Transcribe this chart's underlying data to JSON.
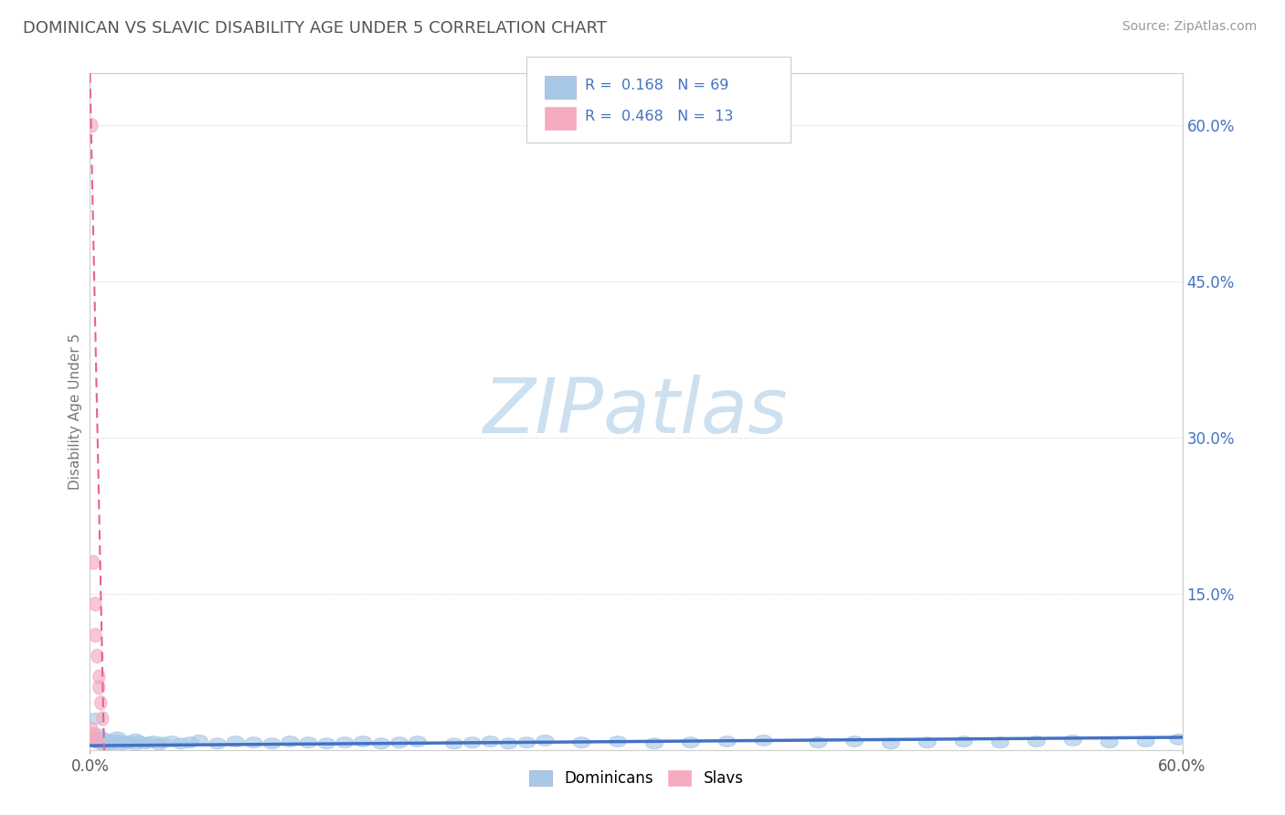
{
  "title": "DOMINICAN VS SLAVIC DISABILITY AGE UNDER 5 CORRELATION CHART",
  "source": "Source: ZipAtlas.com",
  "ylabel": "Disability Age Under 5",
  "xlim": [
    0.0,
    0.6
  ],
  "ylim": [
    0.0,
    0.65
  ],
  "title_color": "#555555",
  "source_color": "#999999",
  "axis_label_color": "#777777",
  "watermark_text": "ZIPatlas",
  "watermark_color": "#cde0f0",
  "blue_color": "#a8c8e8",
  "pink_color": "#f5aac0",
  "blue_line_color": "#4472c4",
  "pink_line_color": "#e86090",
  "right_tick_color": "#4472c4",
  "grid_color": "#d0d0d0",
  "dominican_scatter_x": [
    0.003,
    0.005,
    0.006,
    0.007,
    0.008,
    0.009,
    0.01,
    0.011,
    0.012,
    0.013,
    0.014,
    0.015,
    0.017,
    0.018,
    0.02,
    0.022,
    0.025,
    0.027,
    0.03,
    0.032,
    0.035,
    0.038,
    0.04,
    0.045,
    0.05,
    0.055,
    0.06,
    0.07,
    0.08,
    0.09,
    0.1,
    0.11,
    0.12,
    0.13,
    0.14,
    0.15,
    0.16,
    0.17,
    0.18,
    0.2,
    0.21,
    0.22,
    0.23,
    0.24,
    0.25,
    0.27,
    0.29,
    0.31,
    0.33,
    0.35,
    0.37,
    0.4,
    0.42,
    0.44,
    0.46,
    0.48,
    0.5,
    0.52,
    0.54,
    0.56,
    0.58,
    0.598,
    0.003,
    0.004,
    0.006,
    0.01,
    0.015,
    0.02,
    0.025
  ],
  "dominican_scatter_y": [
    0.008,
    0.006,
    0.007,
    0.005,
    0.008,
    0.006,
    0.007,
    0.005,
    0.008,
    0.006,
    0.007,
    0.009,
    0.005,
    0.008,
    0.006,
    0.007,
    0.005,
    0.008,
    0.006,
    0.007,
    0.008,
    0.005,
    0.007,
    0.008,
    0.006,
    0.007,
    0.009,
    0.006,
    0.008,
    0.007,
    0.006,
    0.008,
    0.007,
    0.006,
    0.007,
    0.008,
    0.006,
    0.007,
    0.008,
    0.006,
    0.007,
    0.008,
    0.006,
    0.007,
    0.009,
    0.007,
    0.008,
    0.006,
    0.007,
    0.008,
    0.009,
    0.007,
    0.008,
    0.006,
    0.007,
    0.008,
    0.007,
    0.008,
    0.009,
    0.007,
    0.008,
    0.01,
    0.03,
    0.015,
    0.012,
    0.01,
    0.012,
    0.008,
    0.01
  ],
  "slavic_scatter_x": [
    0.001,
    0.002,
    0.003,
    0.003,
    0.004,
    0.005,
    0.005,
    0.006,
    0.007,
    0.001,
    0.002,
    0.003,
    0.004
  ],
  "slavic_scatter_y": [
    0.6,
    0.18,
    0.14,
    0.11,
    0.09,
    0.07,
    0.06,
    0.045,
    0.03,
    0.02,
    0.015,
    0.01,
    0.008
  ],
  "dom_trendline_x": [
    0.0,
    0.6
  ],
  "dom_trendline_y": [
    0.004,
    0.012
  ],
  "slav_trendline_x": [
    0.0,
    0.01
  ],
  "slav_trendline_y": [
    0.65,
    0.0
  ],
  "yticks_right": [
    0.15,
    0.3,
    0.45,
    0.6
  ],
  "ytick_labels_right": [
    "15.0%",
    "30.0%",
    "45.0%",
    "60.0%"
  ],
  "legend_r1_label": "R =  0.168   N = 69",
  "legend_r2_label": "R =  0.468   N =  13",
  "legend_text_color": "#4472c4"
}
